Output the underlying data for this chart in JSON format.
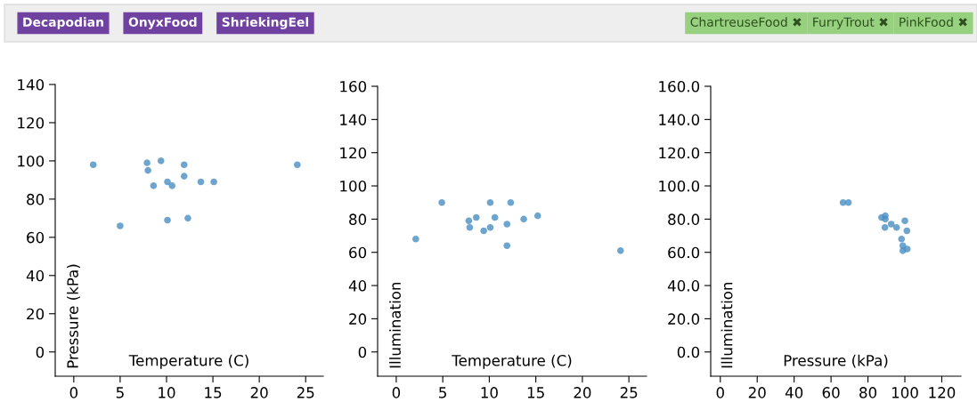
{
  "chart_data": [
    {
      "type": "other",
      "annotations": [
        "Decapodian",
        "OnyxFood",
        "ShriekingEel"
      ],
      "color": "#6f42a1"
    },
    {
      "type": "other",
      "annotations": [
        "ChartreuseFood ✖",
        "FurryTrout ✖",
        "PinkFood ✖"
      ],
      "color": "#97d17f"
    },
    {
      "type": "scatter",
      "xlabel": "Temperature (C)",
      "ylabel": "Pressure (kPa)",
      "xlim": [
        -2.0,
        26.9
      ],
      "ylim": [
        -12.7,
        140
      ],
      "xticks": [
        0,
        5,
        10,
        15,
        20,
        25
      ],
      "yticks": [
        0,
        20,
        40,
        60,
        80,
        100,
        120,
        140
      ],
      "grid": false,
      "marker": "circle",
      "series": [
        {
          "color": "#4a8fc2",
          "x": [
            2.1,
            5.0,
            7.9,
            8.0,
            8.6,
            9.4,
            10.1,
            10.1,
            10.6,
            11.9,
            11.9,
            12.3,
            13.7,
            15.1,
            24.1
          ],
          "values": [
            98,
            66,
            99,
            95,
            87,
            100,
            89,
            69,
            87,
            98,
            92,
            70,
            89,
            89,
            98
          ]
        }
      ]
    },
    {
      "type": "scatter",
      "xlabel": "Temperature (C)",
      "ylabel": "Illumination",
      "xlim": [
        -2.0,
        26.9
      ],
      "ylim": [
        -14.6,
        160
      ],
      "xticks": [
        0,
        5,
        10,
        15,
        20,
        25
      ],
      "yticks": [
        0,
        20,
        40,
        60,
        80,
        100,
        120,
        140,
        160
      ],
      "grid": false,
      "marker": "circle",
      "series": [
        {
          "color": "#4a8fc2",
          "x": [
            2.1,
            4.9,
            7.8,
            7.9,
            8.6,
            9.4,
            10.1,
            10.1,
            10.6,
            11.9,
            11.9,
            12.3,
            13.7,
            15.2,
            24.1
          ],
          "values": [
            68,
            90,
            79,
            75,
            81,
            73,
            90,
            75,
            81,
            77,
            64,
            90,
            80,
            82,
            61
          ]
        }
      ]
    },
    {
      "type": "scatter",
      "xlabel": "Pressure (kPa)",
      "ylabel": "Illumination",
      "xlim": [
        -5.2,
        130.4
      ],
      "ylim": [
        -14.6,
        160
      ],
      "xticks": [
        0,
        20,
        40,
        60,
        80,
        100,
        120
      ],
      "yticks": [
        {
          "value": 0,
          "label": "0.0"
        },
        {
          "value": 20,
          "label": "20.0"
        },
        {
          "value": 40,
          "label": "40.0"
        },
        {
          "value": 60,
          "label": "60.0"
        },
        {
          "value": 80,
          "label": "80.0"
        },
        {
          "value": 100,
          "label": "100.0"
        },
        {
          "value": 120,
          "label": "120.0"
        },
        {
          "value": 140,
          "label": "140.0"
        },
        {
          "value": 160,
          "label": "160.0"
        }
      ],
      "grid": false,
      "marker": "circle",
      "series": [
        {
          "color": "#4a8fc2",
          "x": [
            66.5,
            69.4,
            87.4,
            89.4,
            89.4,
            89.2,
            92.6,
            95.5,
            100,
            101.1,
            98.2,
            98.9,
            98.9,
            101.3
          ],
          "values": [
            90,
            90,
            81,
            82,
            80,
            75,
            77,
            75,
            79,
            73,
            68,
            64,
            61,
            62
          ]
        }
      ]
    }
  ]
}
